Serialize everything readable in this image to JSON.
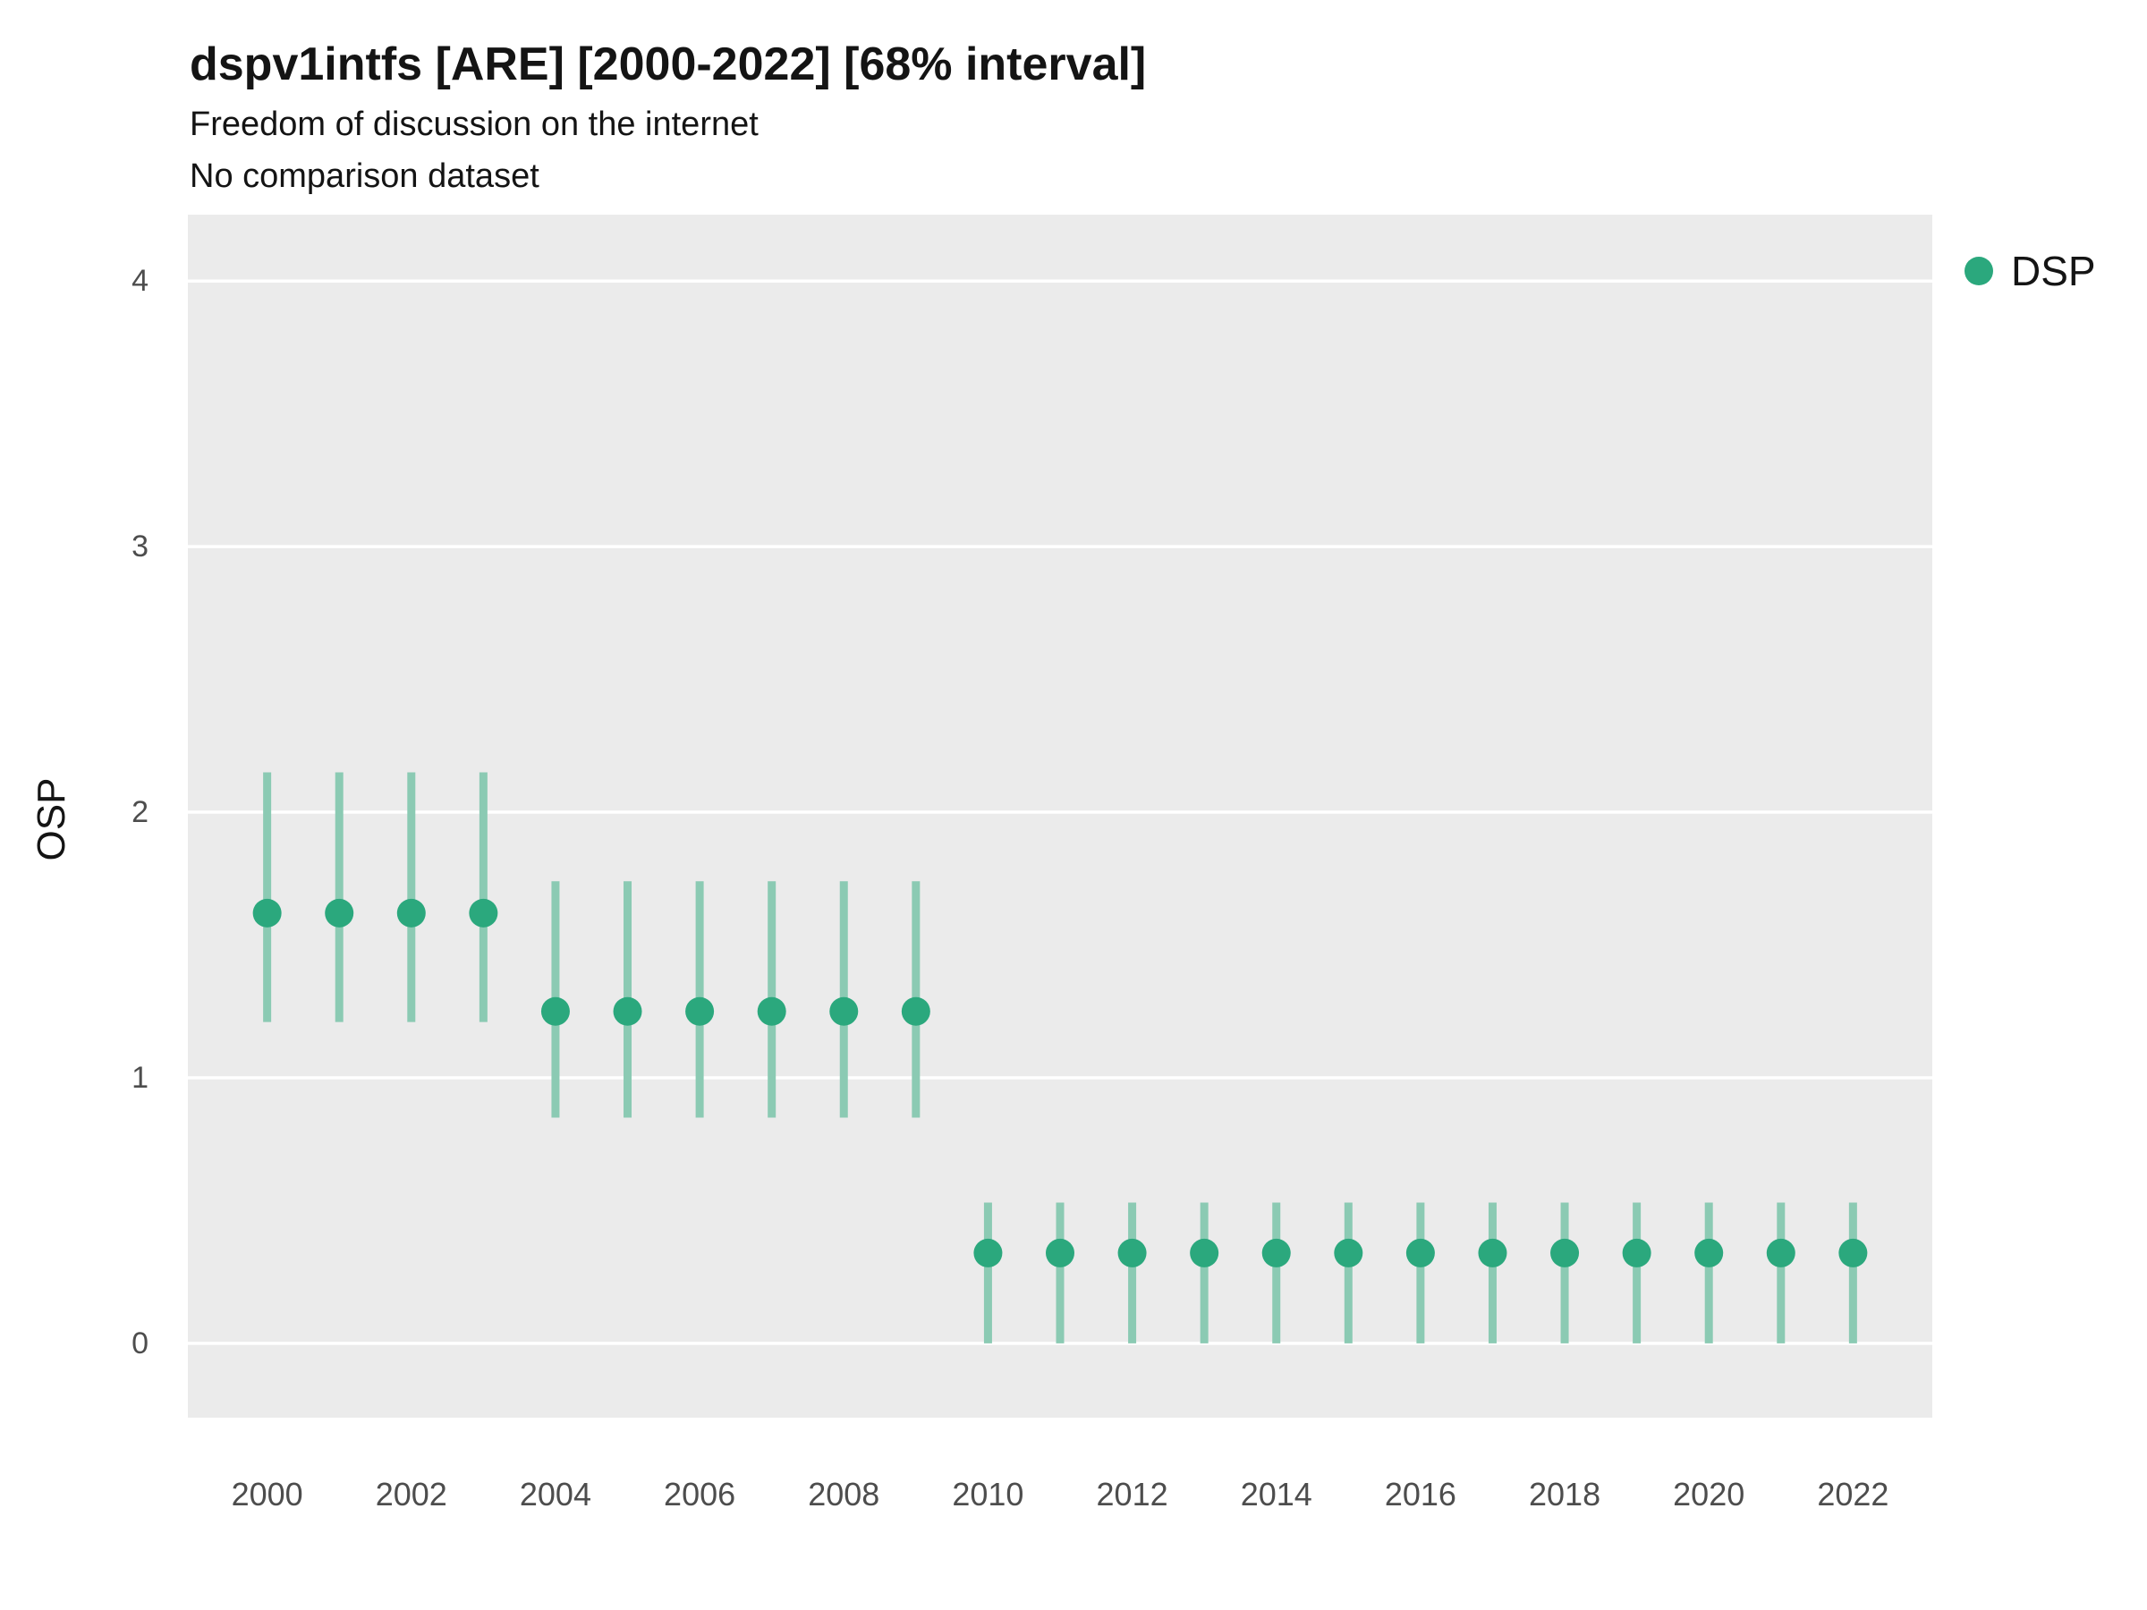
{
  "header": {
    "title": "dspv1intfs [ARE] [2000-2022] [68% interval]",
    "subtitle": "Freedom of discussion on the internet",
    "note": "No comparison dataset"
  },
  "legend": {
    "series_label": "DSP"
  },
  "colors": {
    "point": "#2BA87D",
    "interval": "#8BCAB3",
    "panel": "#EBEBEB",
    "grid": "#FFFFFF",
    "tick_text": "#4D4D4D"
  },
  "chart_data": {
    "type": "pointrange",
    "title": "dspv1intfs [ARE] [2000-2022] [68% interval]",
    "subtitle": "Freedom of discussion on the internet",
    "note": "No comparison dataset",
    "xlabel": "",
    "ylabel": "OSP",
    "legend_position": "right",
    "grid": true,
    "years": [
      2000,
      2001,
      2002,
      2003,
      2004,
      2005,
      2006,
      2007,
      2008,
      2009,
      2010,
      2011,
      2012,
      2013,
      2014,
      2015,
      2016,
      2017,
      2018,
      2019,
      2020,
      2021,
      2022
    ],
    "series": [
      {
        "name": "DSP",
        "estimates": [
          1.62,
          1.62,
          1.62,
          1.62,
          1.25,
          1.25,
          1.25,
          1.25,
          1.25,
          1.25,
          0.34,
          0.34,
          0.34,
          0.34,
          0.34,
          0.34,
          0.34,
          0.34,
          0.34,
          0.34,
          0.34,
          0.34,
          0.34
        ],
        "lower_68": [
          1.21,
          1.21,
          1.21,
          1.21,
          0.85,
          0.85,
          0.85,
          0.85,
          0.85,
          0.85,
          0.0,
          0.0,
          0.0,
          0.0,
          0.0,
          0.0,
          0.0,
          0.0,
          0.0,
          0.0,
          0.0,
          0.0,
          0.0
        ],
        "upper_68": [
          2.15,
          2.15,
          2.15,
          2.15,
          1.74,
          1.74,
          1.74,
          1.74,
          1.74,
          1.74,
          0.53,
          0.53,
          0.53,
          0.53,
          0.53,
          0.53,
          0.53,
          0.53,
          0.53,
          0.53,
          0.53,
          0.53,
          0.53
        ]
      }
    ],
    "xticks": [
      2000,
      2002,
      2004,
      2006,
      2008,
      2010,
      2012,
      2014,
      2016,
      2018,
      2020,
      2022
    ],
    "yticks": [
      0,
      1,
      2,
      3,
      4
    ],
    "xlim": [
      1998.9,
      2023.1
    ],
    "ylim": [
      -0.28,
      4.25
    ]
  }
}
